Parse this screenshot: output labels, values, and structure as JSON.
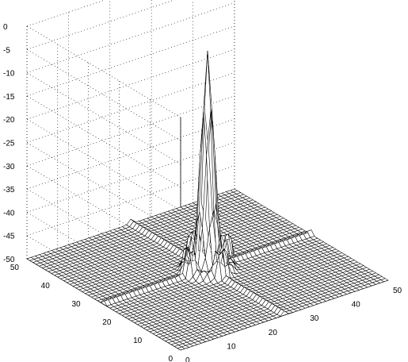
{
  "chart_data": {
    "type": "surface",
    "title": "",
    "xlabel": "",
    "ylabel": "",
    "zlabel": "",
    "x_range": [
      0,
      50
    ],
    "y_range": [
      0,
      50
    ],
    "zlim": [
      -50,
      0
    ],
    "grid": true,
    "x_ticks": [
      "0",
      "10",
      "20",
      "30",
      "40",
      "50"
    ],
    "y_ticks": [
      "0",
      "10",
      "20",
      "30",
      "40",
      "50"
    ],
    "z_ticks": [
      "0",
      "-5",
      "-10",
      "-15",
      "-20",
      "-25",
      "-30",
      "-35",
      "-40",
      "-45",
      "-50"
    ],
    "floor_level": -50,
    "peak": {
      "x": 25,
      "y": 25,
      "z": -3
    },
    "ridges": [
      {
        "along": "x",
        "at_y": 25,
        "z": -49
      },
      {
        "along": "y",
        "at_x": 25,
        "z": -49
      }
    ],
    "mesh_color": "#000000",
    "face_color": "#ffffff"
  }
}
